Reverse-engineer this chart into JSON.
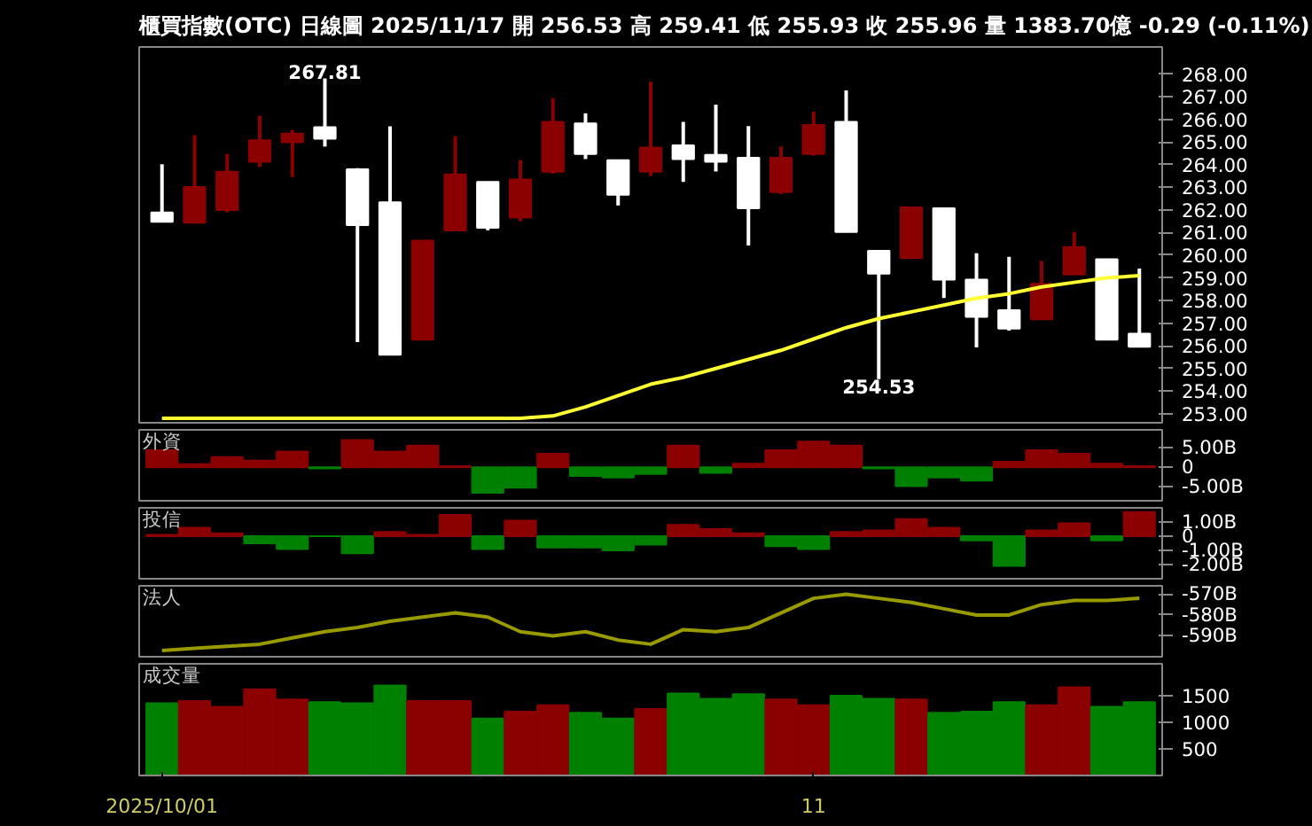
{
  "chart_data": [
    {
      "type": "candlestick",
      "title": "櫃買指數(OTC)  日線圖  2025/11/17  開 256.53  高 259.41  低 255.93  收 255.96  量 1383.70億  -0.29 (-0.11%)",
      "categories": [
        null,
        null,
        null,
        null,
        null,
        null,
        null,
        null,
        null,
        null,
        null,
        null,
        null,
        null,
        null,
        null,
        null,
        null,
        null,
        null,
        null,
        null,
        null,
        null,
        null,
        null,
        null,
        null,
        null,
        null,
        null
      ],
      "ohlc": [
        [
          261.89,
          264.02,
          261.45,
          261.48
        ],
        [
          261.44,
          265.3,
          261.4,
          263.01
        ],
        [
          262.0,
          264.47,
          261.9,
          263.69
        ],
        [
          264.13,
          266.16,
          263.9,
          265.08
        ],
        [
          264.99,
          265.53,
          263.46,
          265.37
        ],
        [
          265.66,
          267.81,
          264.8,
          265.15
        ],
        [
          263.8,
          263.85,
          256.16,
          261.33
        ],
        [
          262.34,
          265.7,
          255.6,
          255.6
        ],
        [
          256.27,
          260.65,
          256.27,
          260.65
        ],
        [
          261.1,
          265.26,
          261.1,
          263.57
        ],
        [
          263.24,
          263.24,
          261.1,
          261.21
        ],
        [
          261.66,
          264.2,
          261.5,
          263.35
        ],
        [
          263.69,
          266.94,
          263.6,
          265.89
        ],
        [
          265.82,
          266.27,
          264.25,
          264.47
        ],
        [
          264.2,
          264.2,
          262.2,
          262.67
        ],
        [
          263.69,
          267.66,
          263.5,
          264.76
        ],
        [
          264.85,
          265.89,
          263.24,
          264.25
        ],
        [
          264.43,
          266.65,
          263.7,
          264.13
        ],
        [
          264.31,
          265.71,
          260.43,
          262.07
        ],
        [
          262.79,
          264.81,
          262.7,
          264.31
        ],
        [
          264.47,
          266.34,
          264.4,
          265.75
        ],
        [
          265.89,
          267.28,
          261.03,
          261.03
        ],
        [
          260.2,
          260.2,
          254.53,
          259.19
        ],
        [
          259.87,
          262.11,
          259.87,
          262.11
        ],
        [
          262.07,
          262.07,
          258.11,
          258.92
        ],
        [
          258.92,
          260.09,
          255.93,
          257.28
        ],
        [
          257.57,
          259.93,
          256.67,
          256.76
        ],
        [
          257.17,
          259.75,
          257.17,
          258.74
        ],
        [
          259.15,
          261.03,
          259.15,
          260.36
        ],
        [
          259.82,
          259.82,
          256.27,
          256.27
        ],
        [
          256.53,
          259.41,
          255.93,
          255.96
        ]
      ],
      "colors": [
        "#ffffff",
        "#8b0000",
        "#8b0000",
        "#8b0000",
        "#8b0000",
        "#ffffff",
        "#ffffff",
        "#ffffff",
        "#8b0000",
        "#8b0000",
        "#ffffff",
        "#8b0000",
        "#8b0000",
        "#ffffff",
        "#ffffff",
        "#8b0000",
        "#ffffff",
        "#ffffff",
        "#ffffff",
        "#8b0000",
        "#8b0000",
        "#ffffff",
        "#ffffff",
        "#8b0000",
        "#ffffff",
        "#ffffff",
        "#ffffff",
        "#8b0000",
        "#8b0000",
        "#ffffff",
        "#ffffff"
      ],
      "series": [
        {
          "type": "line",
          "color": "#ffff33",
          "values": [
            252.8,
            252.8,
            252.8,
            252.8,
            252.8,
            252.8,
            252.8,
            252.8,
            252.8,
            252.8,
            252.8,
            252.8,
            252.9,
            253.3,
            253.8,
            254.3,
            254.6,
            255.0,
            255.4,
            255.8,
            256.3,
            256.8,
            257.2,
            257.5,
            257.8,
            258.1,
            258.3,
            258.6,
            258.8,
            259.0,
            259.1
          ]
        }
      ],
      "annotations": [
        {
          "text": "267.81",
          "y": 267.81
        },
        {
          "text": "254.53",
          "y": 254.53
        }
      ],
      "ylim": [
        252.6,
        269.2
      ],
      "yticks": [
        {
          "value": 253,
          "label": "253.00"
        },
        {
          "value": 254,
          "label": "254.00"
        },
        {
          "value": 255,
          "label": "255.00"
        },
        {
          "value": 256,
          "label": "256.00"
        },
        {
          "value": 257,
          "label": "257.00"
        },
        {
          "value": 258,
          "label": "258.00"
        },
        {
          "value": 259,
          "label": "259.00"
        },
        {
          "value": 260,
          "label": "260.00"
        },
        {
          "value": 261,
          "label": "261.00"
        },
        {
          "value": 262,
          "label": "262.00"
        },
        {
          "value": 263,
          "label": "263.00"
        },
        {
          "value": 264,
          "label": "264.00"
        },
        {
          "value": 265,
          "label": "265.00"
        },
        {
          "value": 266,
          "label": "266.00"
        },
        {
          "value": 267,
          "label": "267.00"
        },
        {
          "value": 268,
          "label": "268.00"
        }
      ],
      "tick_labels": "y"
    },
    {
      "type": "bar",
      "title": "外資",
      "categories": [
        null,
        null,
        null,
        null,
        null,
        null,
        null,
        null,
        null,
        null,
        null,
        null,
        null,
        null,
        null,
        null,
        null,
        null,
        null,
        null,
        null,
        null,
        null,
        null,
        null,
        null,
        null,
        null,
        null,
        null,
        null
      ],
      "values": [
        4.3,
        0.8,
        2.6,
        1.7,
        4.0,
        -0.3,
        6.9,
        4.0,
        5.5,
        0.3,
        -6.5,
        -5.2,
        3.4,
        -2.2,
        -2.6,
        -1.7,
        5.5,
        -1.4,
        0.9,
        4.3,
        6.5,
        5.5,
        -0.3,
        -4.8,
        -2.6,
        -3.4,
        1.4,
        4.3,
        3.4,
        0.9,
        0.3
      ],
      "colors": [
        "#8b0000",
        "#8b0000",
        "#8b0000",
        "#8b0000",
        "#8b0000",
        "#008000",
        "#8b0000",
        "#8b0000",
        "#8b0000",
        "#8b0000",
        "#008000",
        "#008000",
        "#8b0000",
        "#008000",
        "#008000",
        "#008000",
        "#8b0000",
        "#008000",
        "#8b0000",
        "#8b0000",
        "#8b0000",
        "#8b0000",
        "#008000",
        "#008000",
        "#008000",
        "#008000",
        "#8b0000",
        "#8b0000",
        "#8b0000",
        "#8b0000",
        "#8b0000"
      ],
      "ylim": [
        -8.5,
        9.5
      ],
      "yticks": [
        {
          "value": 5,
          "label": "5.00B"
        },
        0,
        {
          "value": -5,
          "label": "-5.00B"
        }
      ],
      "tick_labels": "y"
    },
    {
      "type": "bar",
      "title": "投信",
      "categories": [
        null,
        null,
        null,
        null,
        null,
        null,
        null,
        null,
        null,
        null,
        null,
        null,
        null,
        null,
        null,
        null,
        null,
        null,
        null,
        null,
        null,
        null,
        null,
        null,
        null,
        null,
        null,
        null,
        null,
        null,
        null
      ],
      "values": [
        0.1,
        0.6,
        0.2,
        -0.5,
        -0.9,
        0,
        -1.2,
        0.3,
        0.1,
        1.5,
        -0.9,
        1.1,
        -0.8,
        -0.8,
        -1.0,
        -0.6,
        0.8,
        0.5,
        0.2,
        -0.7,
        -0.9,
        0.3,
        0.4,
        1.2,
        0.6,
        -0.3,
        -2.1,
        0.4,
        0.9,
        -0.3,
        1.7
      ],
      "colors": [
        "#8b0000",
        "#8b0000",
        "#8b0000",
        "#008000",
        "#008000",
        "#008000",
        "#008000",
        "#8b0000",
        "#8b0000",
        "#8b0000",
        "#008000",
        "#8b0000",
        "#008000",
        "#008000",
        "#008000",
        "#008000",
        "#8b0000",
        "#8b0000",
        "#8b0000",
        "#008000",
        "#008000",
        "#8b0000",
        "#8b0000",
        "#8b0000",
        "#8b0000",
        "#008000",
        "#008000",
        "#8b0000",
        "#8b0000",
        "#008000",
        "#8b0000"
      ],
      "ylim": [
        -3.0,
        2.0
      ],
      "yticks": [
        {
          "value": 1,
          "label": "1.00B"
        },
        0,
        {
          "value": -1,
          "label": "-1.00B"
        },
        {
          "value": -2,
          "label": "-2.00B"
        }
      ],
      "tick_labels": "y"
    },
    {
      "type": "line",
      "title": "法人",
      "categories": [
        null,
        null,
        null,
        null,
        null,
        null,
        null,
        null,
        null,
        null,
        null,
        null,
        null,
        null,
        null,
        null,
        null,
        null,
        null,
        null,
        null,
        null,
        null,
        null,
        null,
        null,
        null,
        null,
        null,
        null,
        null
      ],
      "values": [
        -597,
        -596,
        -595,
        -594,
        -591,
        -588,
        -586,
        -583,
        -581,
        -579,
        -581,
        -588,
        -590,
        -588,
        -592,
        -594,
        -587,
        -588,
        -586,
        -579,
        -572,
        -570,
        -572,
        -574,
        -577,
        -580,
        -580,
        -575,
        -573,
        -573,
        -572
      ],
      "color": "#999900",
      "ylim": [
        -600,
        -566
      ],
      "yticks": [
        {
          "value": -570,
          "label": "-570B"
        },
        {
          "value": -580,
          "label": "-580B"
        },
        {
          "value": -590,
          "label": "-590B"
        }
      ],
      "tick_labels": "y"
    },
    {
      "type": "bar",
      "title": "成交量",
      "categories": [
        "2025/10/01",
        null,
        null,
        null,
        null,
        null,
        null,
        null,
        null,
        null,
        null,
        null,
        null,
        null,
        null,
        null,
        null,
        null,
        null,
        null,
        "11",
        null,
        null,
        null,
        null,
        null,
        null,
        null,
        null,
        null,
        null
      ],
      "values": [
        1360,
        1400,
        1290,
        1620,
        1430,
        1380,
        1360,
        1690,
        1400,
        1400,
        1070,
        1200,
        1320,
        1180,
        1070,
        1250,
        1540,
        1440,
        1530,
        1430,
        1320,
        1500,
        1440,
        1430,
        1180,
        1200,
        1380,
        1320,
        1660,
        1290,
        1380
      ],
      "colors": [
        "#008000",
        "#8b0000",
        "#8b0000",
        "#8b0000",
        "#8b0000",
        "#008000",
        "#008000",
        "#008000",
        "#8b0000",
        "#8b0000",
        "#008000",
        "#8b0000",
        "#8b0000",
        "#008000",
        "#008000",
        "#8b0000",
        "#008000",
        "#008000",
        "#008000",
        "#8b0000",
        "#8b0000",
        "#008000",
        "#008000",
        "#8b0000",
        "#008000",
        "#008000",
        "#008000",
        "#8b0000",
        "#8b0000",
        "#008000",
        "#008000"
      ],
      "ylim": [
        0,
        2100
      ],
      "yticks": [
        500,
        1000,
        1500
      ]
    }
  ]
}
